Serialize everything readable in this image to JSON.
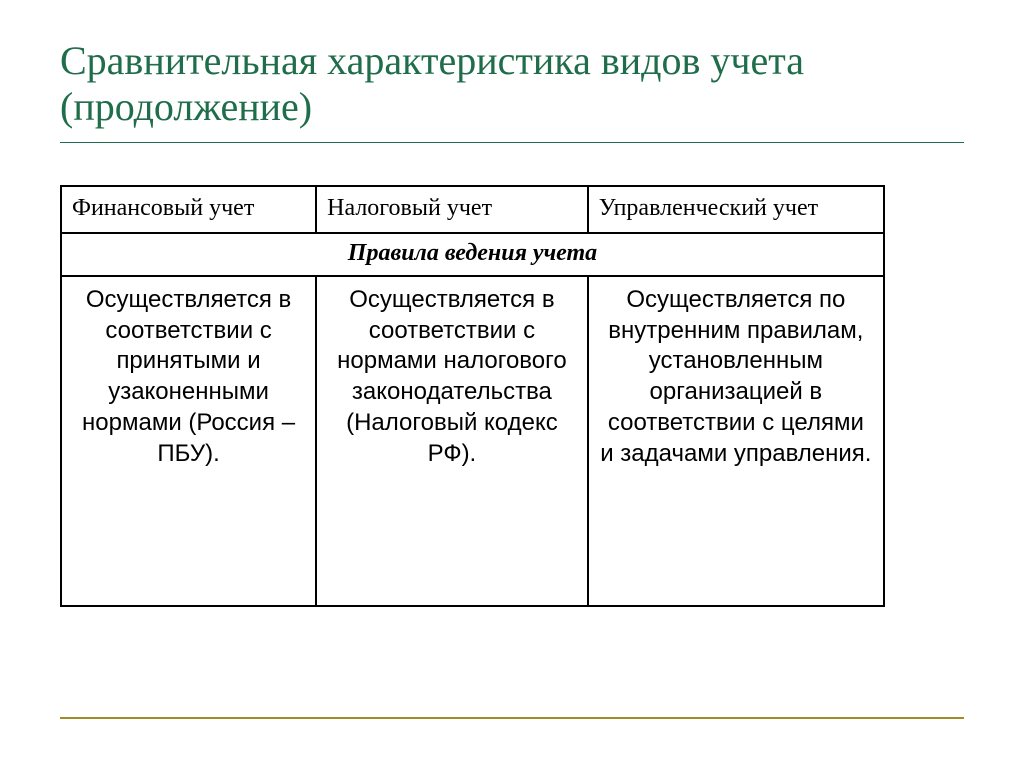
{
  "title": "Сравнительная характеристика  видов учета (продолжение)",
  "table": {
    "columns": [
      {
        "label": "Финансовый учет",
        "width_pct": 31
      },
      {
        "label": "Налоговый учет",
        "width_pct": 33
      },
      {
        "label": "Управленческий учет",
        "width_pct": 36
      }
    ],
    "section_title": "Правила ведения учета",
    "rows": [
      [
        "Осуществляется в соответствии с принятыми и узаконенными нормами (Россия – ПБУ).",
        "Осуществляется в соответствии с нормами налогового законодательства (Налоговый кодекс РФ).",
        "Осуществляется по внутренним правилам, установленным организацией  в соответствии с целями и задачами управления."
      ]
    ]
  },
  "colors": {
    "title": "#1f6d4a",
    "border": "#000000",
    "footer_rule": "#a08a2a",
    "background": "#ffffff",
    "text": "#000000"
  },
  "fonts": {
    "title_family": "Times New Roman",
    "title_size_pt": 30,
    "header_family": "Times New Roman",
    "header_size_pt": 18,
    "section_family": "Times New Roman",
    "section_style": "bold italic",
    "body_family": "Arial",
    "body_size_pt": 18
  }
}
